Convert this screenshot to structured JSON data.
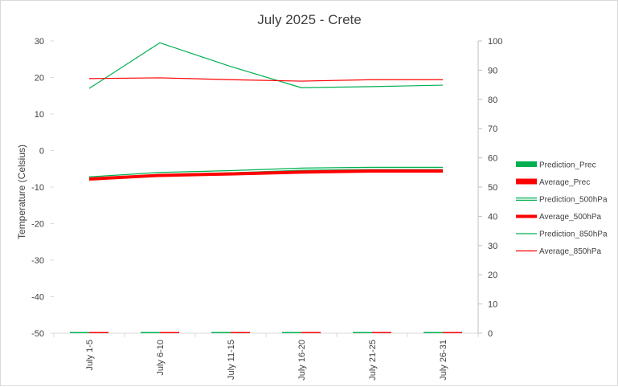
{
  "chart_data": {
    "type": "line",
    "title": "July 2025 - Crete",
    "ylabel": "Temperature (Celsius)",
    "xlabel": "",
    "categories": [
      "July 1-5",
      "July 6-10",
      "July 11-15",
      "July 16-20",
      "July 21-25",
      "July 26-31"
    ],
    "y_left": {
      "min": -50,
      "max": 30,
      "ticks": [
        30,
        20,
        10,
        0,
        -10,
        -20,
        -30,
        -40,
        -50
      ]
    },
    "y_right": {
      "min": 0,
      "max": 100,
      "ticks": [
        100,
        90,
        80,
        70,
        60,
        50,
        40,
        30,
        20,
        10,
        0
      ]
    },
    "grid": false,
    "legend_position": "right",
    "series": [
      {
        "name": "Prediction_Prec",
        "kind": "bar",
        "axis": "right",
        "color": "#00b050",
        "values": [
          0.05,
          0.05,
          0.05,
          0.05,
          0.05,
          0.05
        ]
      },
      {
        "name": "Average_Prec",
        "kind": "bar",
        "axis": "right",
        "color": "#ff0000",
        "values": [
          0.4,
          0.1,
          0.1,
          0.4,
          0.1,
          0.1
        ]
      },
      {
        "name": "Prediction_500hPa",
        "kind": "line",
        "style": "double",
        "axis": "left",
        "color": "#00b050",
        "values": [
          -7.5,
          -6.3,
          -5.8,
          -5.1,
          -4.9,
          -4.9
        ]
      },
      {
        "name": "Average_500hPa",
        "kind": "line",
        "style": "thick",
        "axis": "left",
        "color": "#ff0000",
        "values": [
          -7.8,
          -6.8,
          -6.4,
          -5.9,
          -5.6,
          -5.6
        ]
      },
      {
        "name": "Prediction_850hPa",
        "kind": "line",
        "style": "thin",
        "axis": "left",
        "color": "#00b050",
        "values": [
          17.0,
          29.5,
          23.0,
          17.2,
          17.5,
          17.9
        ]
      },
      {
        "name": "Average_850hPa",
        "kind": "line",
        "style": "thin",
        "axis": "left",
        "color": "#ff0000",
        "values": [
          19.7,
          19.9,
          19.4,
          19.0,
          19.4,
          19.4
        ]
      }
    ]
  }
}
